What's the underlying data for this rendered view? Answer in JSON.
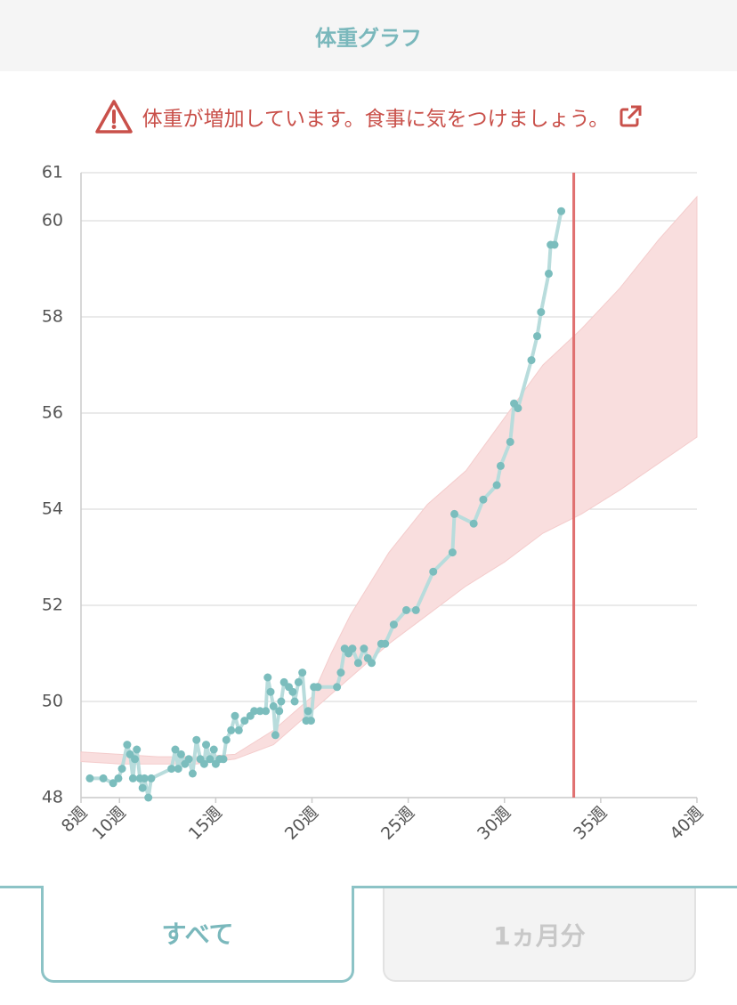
{
  "header": {
    "title": "体重グラフ"
  },
  "warning": {
    "text": "体重が増加しています。食事に気をつけましょう。"
  },
  "chart_data": {
    "type": "line",
    "x": [
      8.46,
      9.16,
      9.67,
      9.94,
      10.13,
      10.4,
      10.55,
      10.7,
      10.8,
      10.9,
      11.06,
      11.2,
      11.3,
      11.5,
      11.65,
      12.7,
      12.9,
      13.05,
      13.2,
      13.4,
      13.6,
      13.8,
      14.0,
      14.2,
      14.4,
      14.5,
      14.7,
      14.9,
      15.0,
      15.2,
      15.4,
      15.55,
      15.8,
      16.0,
      16.2,
      16.5,
      16.8,
      17.0,
      17.3,
      17.6,
      17.7,
      17.85,
      18.0,
      18.1,
      18.3,
      18.4,
      18.55,
      18.8,
      19.0,
      19.1,
      19.3,
      19.5,
      19.7,
      19.8,
      19.95,
      20.1,
      20.3,
      21.3,
      21.5,
      21.7,
      21.9,
      22.1,
      22.4,
      22.7,
      22.9,
      23.1,
      23.6,
      23.8,
      24.25,
      24.9,
      25.4,
      26.3,
      27.3,
      27.4,
      28.4,
      28.9,
      29.6,
      29.8,
      30.3,
      30.5,
      30.7,
      31.4,
      31.7,
      31.9,
      32.3,
      32.4,
      32.6,
      32.95
    ],
    "values": [
      48.4,
      48.4,
      48.3,
      48.4,
      48.6,
      49.1,
      48.9,
      48.4,
      48.8,
      49.0,
      48.4,
      48.2,
      48.4,
      48.0,
      48.4,
      48.6,
      49.0,
      48.6,
      48.9,
      48.7,
      48.8,
      48.5,
      49.2,
      48.8,
      48.7,
      49.1,
      48.8,
      49.0,
      48.7,
      48.8,
      48.8,
      49.2,
      49.4,
      49.7,
      49.4,
      49.6,
      49.7,
      49.8,
      49.8,
      49.8,
      50.5,
      50.2,
      49.9,
      49.3,
      49.8,
      50.0,
      50.4,
      50.3,
      50.2,
      50.0,
      50.4,
      50.6,
      49.6,
      49.8,
      49.6,
      50.3,
      50.3,
      50.3,
      50.6,
      51.1,
      51.0,
      51.1,
      50.8,
      51.1,
      50.9,
      50.8,
      51.2,
      51.2,
      51.6,
      51.9,
      51.9,
      52.7,
      53.1,
      53.9,
      53.7,
      54.2,
      54.5,
      54.9,
      55.4,
      56.2,
      56.1,
      57.1,
      57.6,
      58.1,
      58.9,
      59.5,
      59.5,
      60.2
    ],
    "color": "#7bbdbd",
    "line_color": "#b8dcdc",
    "band": {
      "x": [
        8,
        10,
        12,
        14,
        16,
        18,
        20,
        21,
        22,
        24,
        26,
        28,
        30,
        32,
        34,
        36,
        38,
        40
      ],
      "upper": [
        48.95,
        48.9,
        48.85,
        48.85,
        48.9,
        49.4,
        50.1,
        51.0,
        51.8,
        53.1,
        54.1,
        54.8,
        55.9,
        57.0,
        57.75,
        58.6,
        59.6,
        60.5
      ],
      "lower": [
        48.75,
        48.7,
        48.7,
        48.7,
        48.8,
        49.1,
        49.8,
        50.15,
        50.5,
        51.2,
        51.8,
        52.4,
        52.9,
        53.5,
        53.9,
        54.4,
        54.95,
        55.5
      ],
      "color": "#f9dede"
    },
    "vline": 33.6,
    "vline_color": "#e07070",
    "xlim": [
      8,
      40
    ],
    "xticks": [
      {
        "value": 8,
        "label": "8週"
      },
      {
        "value": 10,
        "label": "10週"
      },
      {
        "value": 15,
        "label": "15週"
      },
      {
        "value": 20,
        "label": "20週"
      },
      {
        "value": 25,
        "label": "25週"
      },
      {
        "value": 30,
        "label": "30週"
      },
      {
        "value": 35,
        "label": "35週"
      },
      {
        "value": 40,
        "label": "40週"
      }
    ],
    "ylim": [
      48,
      61
    ],
    "yticks": [
      48,
      50,
      52,
      54,
      56,
      58,
      60,
      61
    ],
    "grid": true
  },
  "tabs": [
    {
      "label": "すべて"
    },
    {
      "label": "1ヵ月分"
    }
  ]
}
